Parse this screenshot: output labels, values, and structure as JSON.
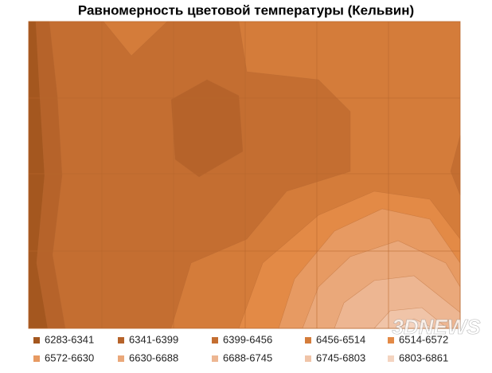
{
  "chart_data": {
    "type": "contour",
    "title": "Равномерность цветовой температуры (Кельвин)",
    "legend": [
      {
        "label": "6283-6341",
        "color": "#a4571f"
      },
      {
        "label": "6341-6399",
        "color": "#b6632a"
      },
      {
        "label": "6399-6456",
        "color": "#c46e31"
      },
      {
        "label": "6456-6514",
        "color": "#d47c3a"
      },
      {
        "label": "6514-6572",
        "color": "#e38a46"
      },
      {
        "label": "6572-6630",
        "color": "#e79a62"
      },
      {
        "label": "6630-6688",
        "color": "#eaa87a"
      },
      {
        "label": "6688-6745",
        "color": "#edb692"
      },
      {
        "label": "6745-6803",
        "color": "#f0c4a8"
      },
      {
        "label": "6803-6861",
        "color": "#f4d4c0"
      }
    ],
    "watermark": "3DNEWS"
  }
}
